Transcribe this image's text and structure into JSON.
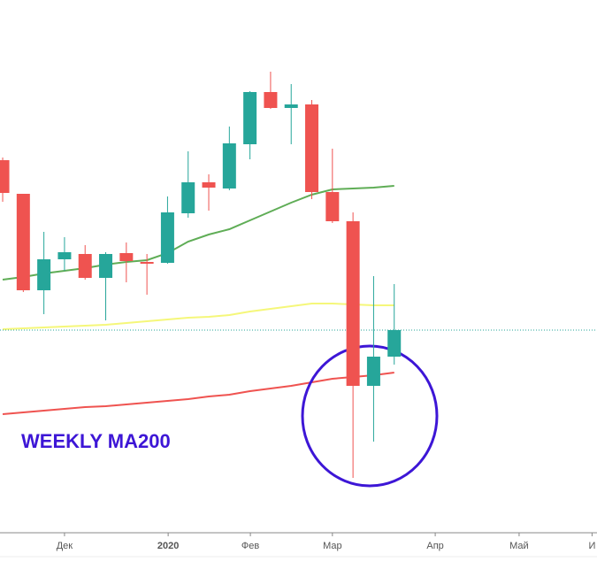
{
  "chart_data": {
    "type": "candlestick",
    "annotation": "WEEKLY MA200",
    "x": [
      0,
      1,
      2,
      3,
      4,
      5,
      6,
      7,
      8,
      9,
      10,
      11,
      12,
      13,
      14,
      15,
      16,
      17,
      18,
      19
    ],
    "open": [
      419,
      381,
      272,
      307,
      313,
      286,
      314,
      304,
      303,
      359,
      394,
      387,
      437,
      496,
      478,
      482,
      383,
      350,
      164,
      197
    ],
    "high": [
      422,
      381,
      338,
      332,
      323,
      315,
      326,
      313,
      378,
      429,
      403,
      457,
      497,
      519,
      505,
      487,
      432,
      360,
      288,
      279
    ],
    "low": [
      372,
      270,
      245,
      294,
      284,
      238,
      281,
      267,
      302,
      354,
      362,
      385,
      420,
      477,
      437,
      375,
      348,
      60,
      101,
      188
    ],
    "close": [
      382,
      272,
      307,
      315,
      286,
      313,
      305,
      302,
      360,
      394,
      388,
      438,
      496,
      478,
      482,
      383,
      350,
      164,
      197,
      227
    ],
    "up_color": "#26a69a",
    "down_color": "#ef5350",
    "lines": [
      {
        "color": "#5fad56",
        "values": [
          284,
          287,
          291,
          294,
          297,
          301,
          304,
          306,
          314,
          327,
          335,
          341,
          351,
          361,
          371,
          380,
          386,
          387,
          388,
          390
        ]
      },
      {
        "color": "#f5f77a",
        "values": [
          228,
          229,
          230,
          231,
          232,
          233,
          235,
          237,
          239,
          241,
          242,
          244,
          248,
          251,
          254,
          257,
          257,
          256,
          255,
          255
        ]
      },
      {
        "color": "#ef5350",
        "values": [
          132,
          134,
          136,
          138,
          140,
          141,
          143,
          145,
          147,
          149,
          152,
          154,
          158,
          161,
          164,
          168,
          172,
          174,
          176,
          179
        ]
      }
    ],
    "price_line": 227,
    "price_line_color": "#26a69a",
    "xlim": [
      -0.13,
      28.84
    ],
    "ylim": [
      0,
      600
    ],
    "xticks": [
      {
        "value": 3,
        "label": "Дек"
      },
      {
        "value": 8.03,
        "label": "2020"
      },
      {
        "value": 12.02,
        "label": "Фев"
      },
      {
        "value": 16,
        "label": "Мар"
      },
      {
        "value": 20.99,
        "label": "Апр"
      },
      {
        "value": 25.06,
        "label": "Май"
      },
      {
        "value": 28.6,
        "label": "И"
      }
    ]
  }
}
